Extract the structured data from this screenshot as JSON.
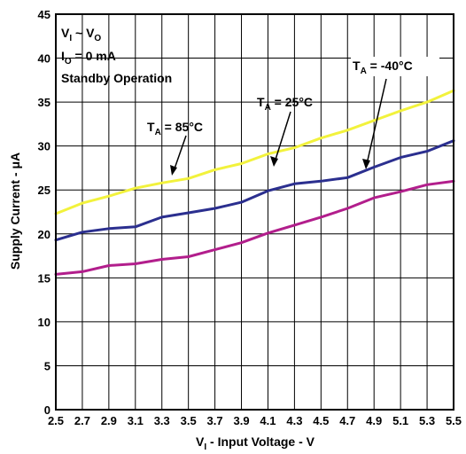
{
  "chart_data": {
    "type": "line",
    "xlabel": {
      "main": "V",
      "sub": "I",
      "rest": " - Input Voltage - V"
    },
    "ylabel": "Supply Current - μA",
    "xlim": [
      2.5,
      5.5
    ],
    "ylim": [
      0,
      45
    ],
    "x_ticks": [
      "2.5",
      "2.7",
      "2.9",
      "3.1",
      "3.3",
      "3.5",
      "3.7",
      "3.9",
      "4.1",
      "4.3",
      "4.5",
      "4.7",
      "4.9",
      "5.1",
      "5.3",
      "5.5"
    ],
    "y_ticks": [
      "0",
      "5",
      "10",
      "15",
      "20",
      "25",
      "30",
      "35",
      "40",
      "45"
    ],
    "grid": true,
    "conditions": [
      {
        "main": "V",
        "sub": "I",
        "rest": " ~ V",
        "sub2": "O"
      },
      {
        "main": "I",
        "sub": "O",
        "rest": " = 0 mA"
      },
      {
        "text": "Standby Operation"
      }
    ],
    "series": [
      {
        "name": {
          "main": "T",
          "sub": "A",
          "rest": " = 85°C"
        },
        "color": "#f2f23c",
        "x": [
          2.5,
          2.7,
          2.9,
          3.1,
          3.3,
          3.5,
          3.7,
          3.9,
          4.1,
          4.3,
          4.5,
          4.7,
          4.9,
          5.1,
          5.3,
          5.5
        ],
        "values": [
          22.3,
          23.5,
          24.3,
          25.2,
          25.8,
          26.3,
          27.3,
          28.0,
          29.1,
          29.8,
          30.9,
          31.8,
          32.9,
          34.0,
          35.0,
          36.3
        ]
      },
      {
        "name": {
          "main": "T",
          "sub": "A",
          "rest": " = 25°C"
        },
        "color": "#2b2f8f",
        "x": [
          2.5,
          2.7,
          2.9,
          3.1,
          3.3,
          3.5,
          3.7,
          3.9,
          4.1,
          4.3,
          4.5,
          4.7,
          4.9,
          5.1,
          5.3,
          5.5
        ],
        "values": [
          19.3,
          20.2,
          20.6,
          20.8,
          21.9,
          22.4,
          22.9,
          23.6,
          24.9,
          25.7,
          26.0,
          26.4,
          27.6,
          28.7,
          29.4,
          30.6
        ]
      },
      {
        "name": {
          "main": "T",
          "sub": "A",
          "rest": " = -40°C"
        },
        "color": "#b21e8c",
        "x": [
          2.5,
          2.7,
          2.9,
          3.1,
          3.3,
          3.5,
          3.7,
          3.9,
          4.1,
          4.3,
          4.5,
          4.7,
          4.9,
          5.1,
          5.3,
          5.5
        ],
        "values": [
          15.4,
          15.7,
          16.4,
          16.6,
          17.1,
          17.4,
          18.2,
          19.0,
          20.1,
          21.0,
          21.9,
          22.9,
          24.1,
          24.8,
          25.6,
          26.0
        ]
      }
    ]
  }
}
